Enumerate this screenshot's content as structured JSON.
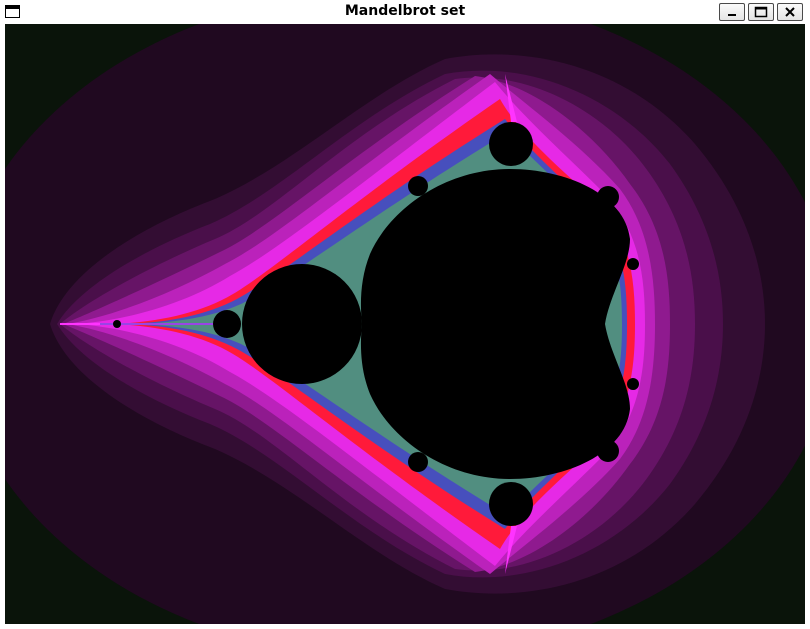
{
  "window": {
    "title": "Mandelbrot set",
    "icons": {
      "system_menu": "window-menu-icon",
      "minimize": "minimize-icon",
      "maximize": "maximize-icon",
      "close": "close-icon"
    }
  },
  "canvas": {
    "content": "mandelbrot-fractal",
    "colors": {
      "set_interior": "#000000",
      "background_outer": "#0a140a",
      "band_1": "#200920",
      "band_2": "#330d33",
      "band_3": "#4a0f4a",
      "band_4": "#661466",
      "band_5": "#8f1a8f",
      "band_6": "#bb22bb",
      "band_7": "#e629e6",
      "band_8": "#ff33ff",
      "edge_red": "#ff1a3a",
      "edge_blue": "#3355cc",
      "edge_green": "#55aa66"
    }
  }
}
